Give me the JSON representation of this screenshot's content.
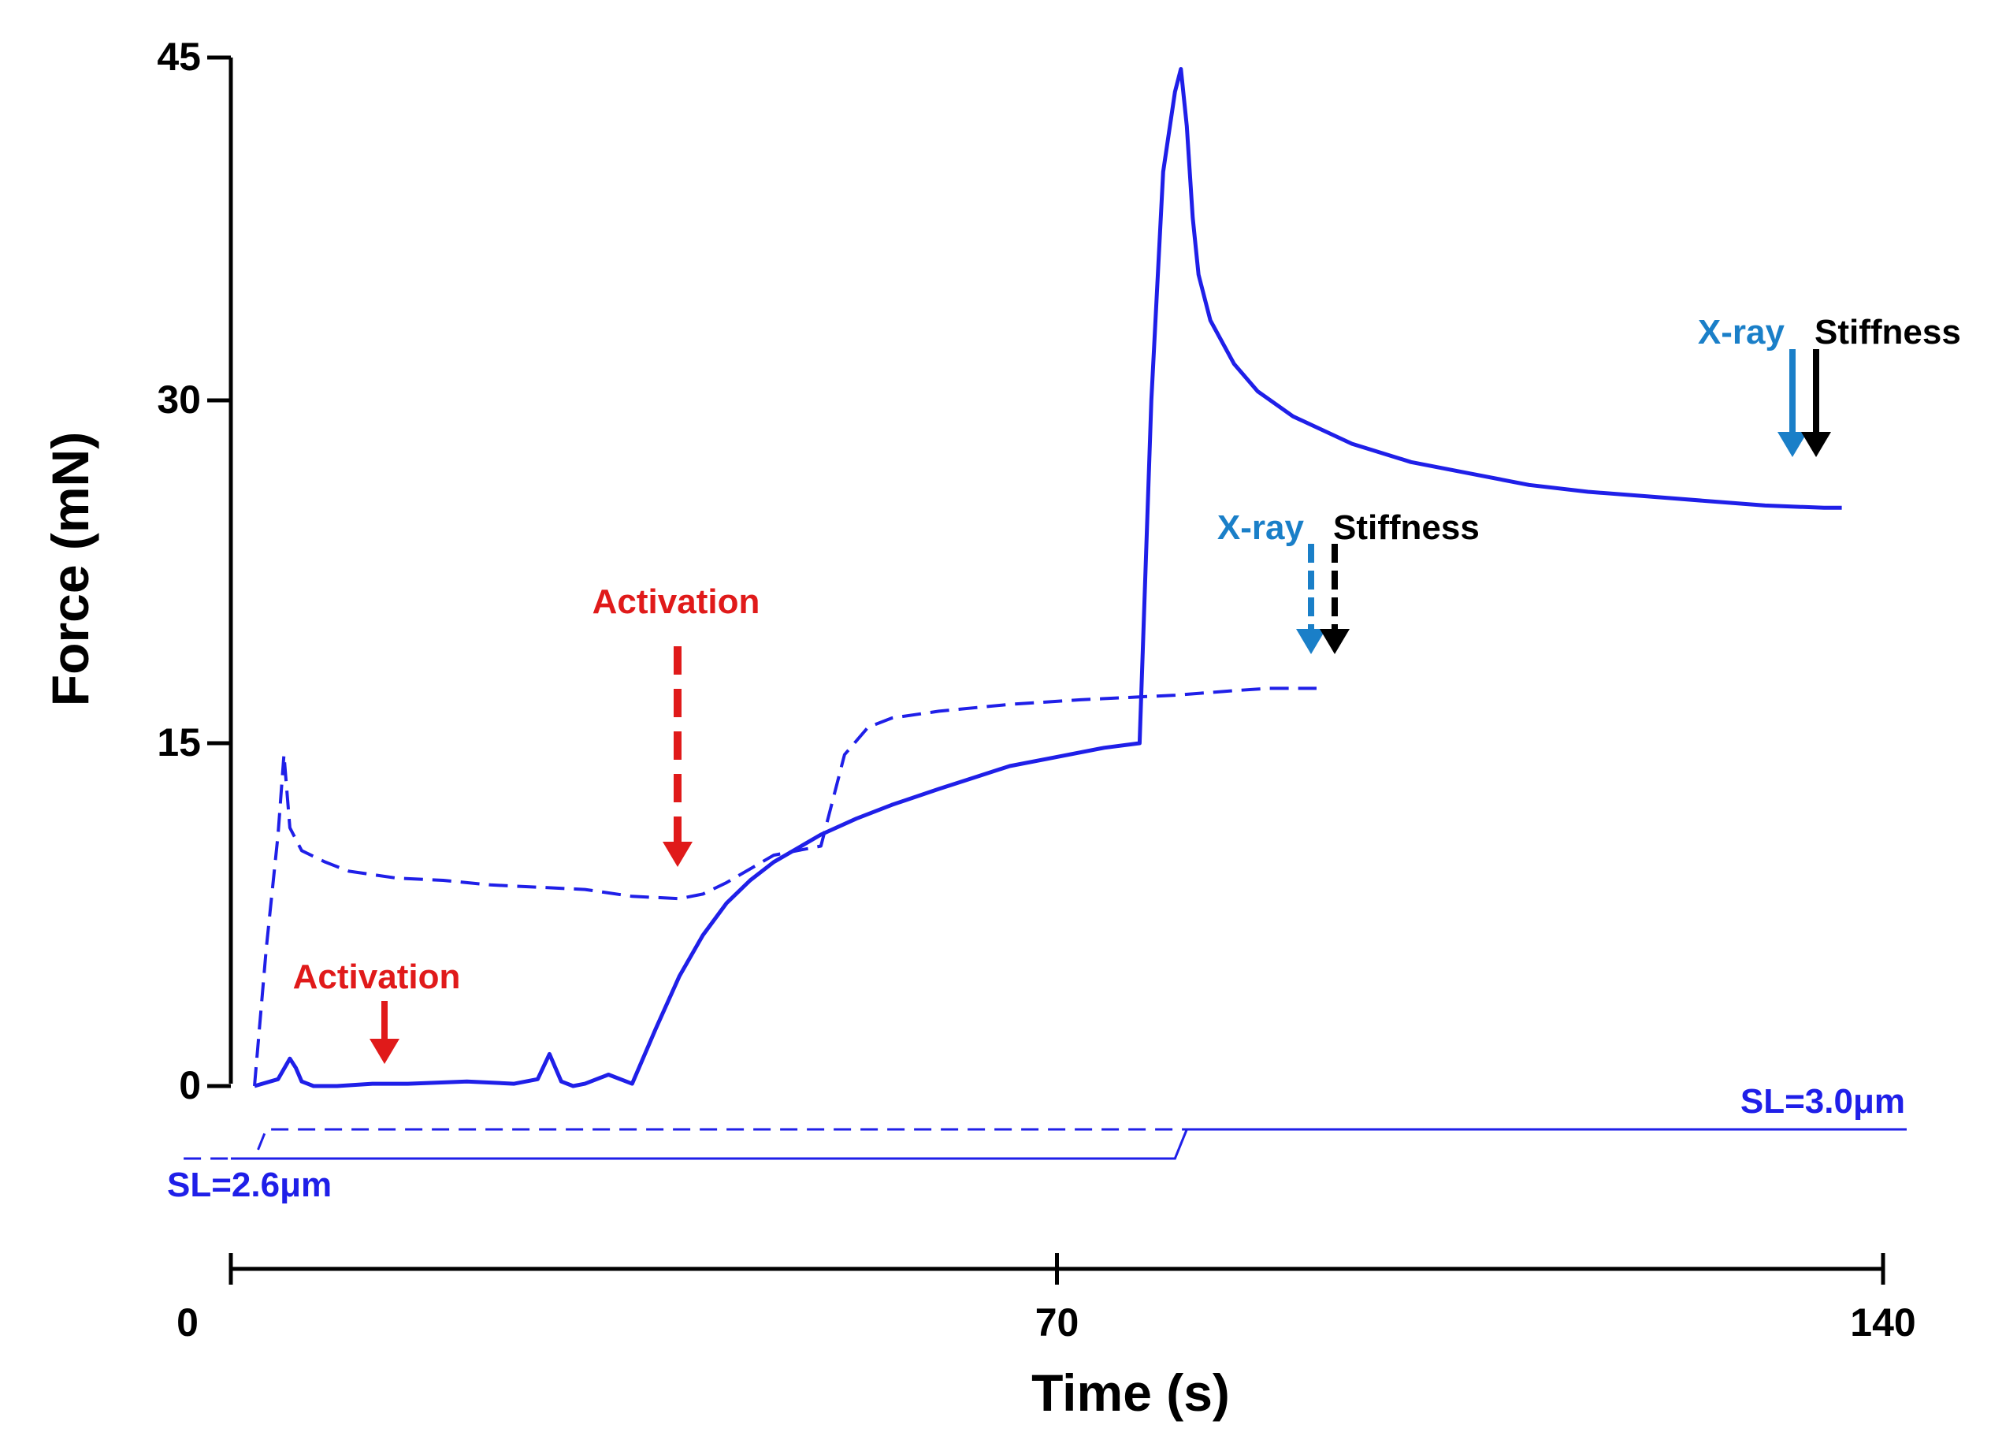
{
  "chart_data": {
    "type": "line",
    "title": "",
    "xlabel": "Time (s)",
    "ylabel": "Force (mN)",
    "xlim": [
      0,
      140
    ],
    "ylim": [
      0,
      45
    ],
    "x_ticks": [
      0,
      70,
      140
    ],
    "y_ticks": [
      0,
      15,
      30,
      45
    ],
    "grid": false,
    "legend": "none",
    "colors": {
      "trace": "#1f1fe8",
      "activation": "#e01a1a",
      "xray": "#1a7fc8",
      "stiffness": "#000000"
    },
    "series": [
      {
        "name": "force-solid",
        "style": "solid",
        "x": [
          2,
          4,
          5,
          5.5,
          6,
          6.5,
          7,
          9,
          12,
          15,
          20,
          24,
          26,
          27,
          28,
          29,
          30,
          32,
          33.5,
          34,
          36,
          38,
          40,
          42,
          44,
          46,
          48,
          50,
          53,
          56,
          60,
          63,
          66,
          70,
          74,
          77,
          78,
          79,
          80,
          80.5,
          81,
          81.5,
          82,
          83,
          85,
          87,
          90,
          95,
          100,
          105,
          110,
          115,
          120,
          125,
          130,
          135,
          136.5
        ],
        "y": [
          0,
          0.3,
          1.2,
          0.8,
          0.2,
          0.1,
          0,
          0,
          0.1,
          0.1,
          0.2,
          0.1,
          0.3,
          1.4,
          0.2,
          0,
          0.1,
          0.5,
          0.2,
          0.1,
          2.5,
          4.8,
          6.6,
          8.0,
          9.0,
          9.8,
          10.4,
          11.0,
          11.7,
          12.3,
          13.0,
          13.5,
          14.0,
          14.4,
          14.8,
          15.0,
          30.0,
          40.0,
          43.5,
          44.5,
          42.0,
          38.0,
          35.5,
          33.5,
          31.6,
          30.4,
          29.3,
          28.1,
          27.3,
          26.8,
          26.3,
          26.0,
          25.8,
          25.6,
          25.4,
          25.3,
          25.3
        ]
      },
      {
        "name": "force-dashed",
        "style": "dashed",
        "x": [
          2,
          3,
          4,
          4.5,
          5,
          6,
          8,
          10,
          14,
          18,
          22,
          26,
          30,
          34,
          38,
          40,
          42,
          44,
          46,
          48,
          50,
          52,
          54,
          56,
          60,
          66,
          72,
          76,
          80,
          85,
          88,
          92
        ],
        "y": [
          0,
          6.0,
          11.0,
          14.5,
          11.3,
          10.3,
          9.8,
          9.4,
          9.1,
          9.0,
          8.8,
          8.7,
          8.6,
          8.3,
          8.2,
          8.4,
          8.9,
          9.5,
          10.1,
          10.3,
          10.5,
          14.5,
          15.7,
          16.1,
          16.4,
          16.7,
          16.9,
          17.0,
          17.1,
          17.3,
          17.4,
          17.4
        ]
      }
    ],
    "sarcomere_traces": [
      {
        "name": "sl-solid",
        "style": "solid",
        "x": [
          0,
          80,
          81,
          142
        ],
        "level": [
          0,
          0,
          1,
          1
        ]
      },
      {
        "name": "sl-dashed",
        "style": "dashed",
        "x": [
          -4,
          2,
          3,
          142
        ],
        "level": [
          0,
          0,
          1,
          1
        ]
      }
    ],
    "annotations": [
      {
        "id": "activation-dashed",
        "text": "Activation",
        "x": 38,
        "y": 9.5,
        "color": "activation",
        "arrow": "dashed"
      },
      {
        "id": "activation-solid",
        "text": "Activation",
        "x": 13,
        "y": 1.0,
        "color": "activation",
        "arrow": "solid"
      },
      {
        "id": "xray-dashed",
        "text": "X-ray",
        "x": 91,
        "y": 18.5,
        "color": "xray",
        "arrow": "dashed"
      },
      {
        "id": "stiffness-dashed",
        "text": "Stiffness",
        "x": 93,
        "y": 18.5,
        "color": "stiffness",
        "arrow": "dashed"
      },
      {
        "id": "xray-solid",
        "text": "X-ray",
        "x": 132,
        "y": 27.2,
        "color": "xray",
        "arrow": "solid"
      },
      {
        "id": "stiffness-solid",
        "text": "Stiffness",
        "x": 134,
        "y": 27.2,
        "color": "stiffness",
        "arrow": "solid"
      }
    ],
    "sl_labels": {
      "start": "SL=2.6μm",
      "end": "SL=3.0μm"
    }
  }
}
